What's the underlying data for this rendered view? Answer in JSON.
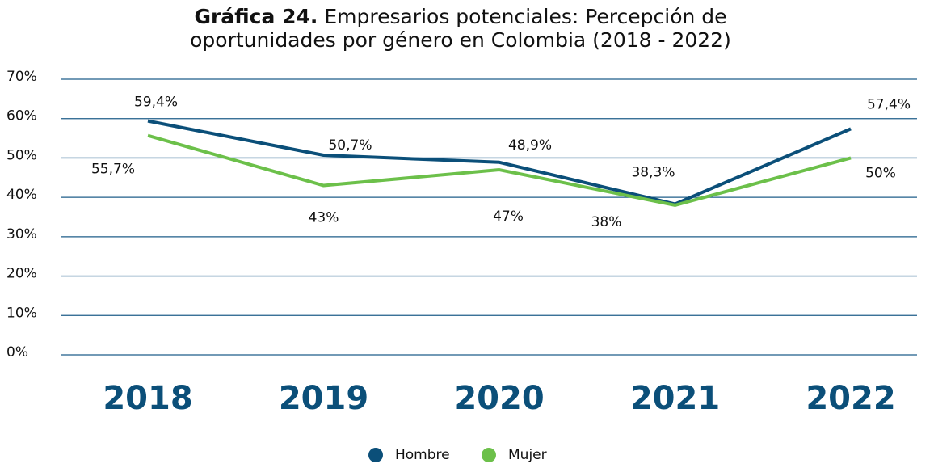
{
  "chart_data": {
    "type": "line",
    "title_number": "Gráfica 24.",
    "title": "Empresarios potenciales: Percepción de oportunidades por género en Colombia (2018 - 2022)",
    "categories": [
      "2018",
      "2019",
      "2020",
      "2021",
      "2022"
    ],
    "series": [
      {
        "name": "Hombre",
        "color": "#0b4f79",
        "values": [
          59.4,
          50.7,
          48.9,
          38.3,
          57.4
        ],
        "value_labels": [
          "59,4%",
          "50,7%",
          "48,9%",
          "38,3%",
          "57,4%"
        ]
      },
      {
        "name": "Mujer",
        "color": "#6cc04a",
        "values": [
          55.7,
          43,
          47,
          38,
          50
        ],
        "value_labels": [
          "55,7%",
          "43%",
          "47%",
          "38%",
          "50%"
        ]
      }
    ],
    "ylim": [
      0,
      70
    ],
    "yticks": [
      {
        "value": 0,
        "label": "0%"
      },
      {
        "value": 10,
        "label": "10%"
      },
      {
        "value": 20,
        "label": "20%"
      },
      {
        "value": 30,
        "label": "30%"
      },
      {
        "value": 40,
        "label": "40%"
      },
      {
        "value": 50,
        "label": "50%"
      },
      {
        "value": 60,
        "label": "60%"
      },
      {
        "value": 70,
        "label": "70%"
      }
    ],
    "grid": true
  }
}
